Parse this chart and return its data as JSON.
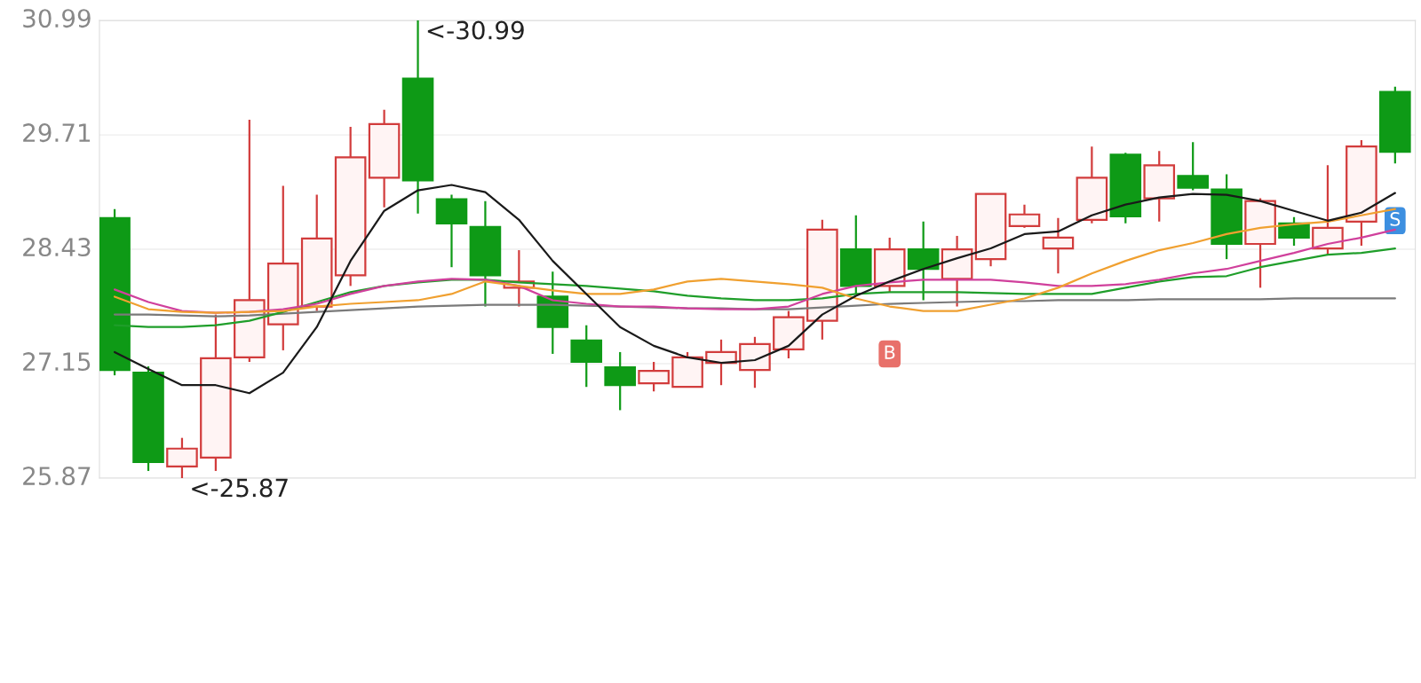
{
  "chart_data": {
    "type": "candlestick",
    "categories": [
      null,
      null,
      null,
      null,
      null,
      null,
      null,
      null,
      null,
      null,
      null,
      null,
      null,
      null,
      null,
      null,
      null,
      null,
      null,
      null,
      null,
      null,
      null,
      null,
      null,
      null,
      null,
      null,
      null,
      null,
      null,
      null,
      null,
      null,
      null,
      null,
      null,
      null,
      null
    ],
    "ohlc": [
      [
        28.78,
        28.88,
        27.02,
        27.08
      ],
      [
        27.05,
        27.12,
        25.95,
        26.05
      ],
      [
        26.0,
        26.32,
        25.87,
        26.2
      ],
      [
        26.1,
        27.7,
        25.95,
        27.21
      ],
      [
        27.22,
        29.88,
        27.17,
        27.86
      ],
      [
        27.59,
        29.14,
        27.3,
        28.27
      ],
      [
        27.79,
        29.04,
        27.74,
        28.55
      ],
      [
        28.14,
        29.8,
        28.02,
        29.46
      ],
      [
        29.23,
        29.99,
        28.9,
        29.83
      ],
      [
        30.34,
        30.99,
        28.83,
        29.2
      ],
      [
        28.99,
        29.04,
        28.23,
        28.72
      ],
      [
        28.68,
        28.97,
        27.79,
        28.14
      ],
      [
        28.0,
        28.42,
        27.79,
        28.07
      ],
      [
        27.9,
        28.18,
        27.26,
        27.56
      ],
      [
        27.41,
        27.58,
        26.89,
        27.17
      ],
      [
        27.11,
        27.28,
        26.63,
        26.91
      ],
      [
        26.93,
        27.17,
        26.84,
        27.07
      ],
      [
        26.89,
        27.28,
        26.89,
        27.22
      ],
      [
        27.16,
        27.42,
        26.91,
        27.28
      ],
      [
        27.08,
        27.45,
        26.88,
        27.37
      ],
      [
        27.31,
        27.74,
        27.21,
        27.67
      ],
      [
        27.63,
        28.76,
        27.42,
        28.65
      ],
      [
        28.43,
        28.81,
        27.93,
        28.02
      ],
      [
        28.02,
        28.56,
        27.95,
        28.43
      ],
      [
        28.43,
        28.74,
        27.86,
        28.21
      ],
      [
        28.1,
        28.58,
        27.79,
        28.43
      ],
      [
        28.32,
        29.05,
        28.24,
        29.05
      ],
      [
        28.69,
        28.93,
        28.67,
        28.82
      ],
      [
        28.44,
        28.78,
        28.16,
        28.56
      ],
      [
        28.76,
        29.58,
        28.72,
        29.23
      ],
      [
        29.49,
        29.51,
        28.72,
        28.8
      ],
      [
        29.0,
        29.53,
        28.74,
        29.37
      ],
      [
        29.25,
        29.63,
        29.09,
        29.12
      ],
      [
        29.1,
        29.27,
        28.32,
        28.49
      ],
      [
        28.49,
        29.0,
        28.0,
        28.97
      ],
      [
        28.72,
        28.79,
        28.47,
        28.56
      ],
      [
        28.44,
        29.37,
        28.37,
        28.67
      ],
      [
        28.74,
        29.65,
        28.47,
        29.58
      ],
      [
        30.19,
        30.25,
        29.39,
        29.52
      ]
    ],
    "colors": [
      "#0e9a16",
      "#0e9a16",
      "#d23c3c",
      "#d23c3c",
      "#d23c3c",
      "#d23c3c",
      "#d23c3c",
      "#d23c3c",
      "#d23c3c",
      "#0e9a16",
      "#0e9a16",
      "#0e9a16",
      "#d23c3c",
      "#0e9a16",
      "#0e9a16",
      "#0e9a16",
      "#d23c3c",
      "#d23c3c",
      "#d23c3c",
      "#d23c3c",
      "#d23c3c",
      "#d23c3c",
      "#0e9a16",
      "#d23c3c",
      "#0e9a16",
      "#d23c3c",
      "#d23c3c",
      "#d23c3c",
      "#d23c3c",
      "#d23c3c",
      "#0e9a16",
      "#d23c3c",
      "#0e9a16",
      "#0e9a16",
      "#d23c3c",
      "#0e9a16",
      "#d23c3c",
      "#d23c3c",
      "#0e9a16"
    ],
    "series": [
      {
        "type": "line",
        "color": "#7a7a7a",
        "values": [
          27.7,
          27.7,
          27.69,
          27.68,
          27.69,
          27.71,
          27.73,
          27.75,
          27.77,
          27.79,
          27.8,
          27.81,
          27.81,
          27.81,
          27.8,
          27.79,
          27.78,
          27.77,
          27.77,
          27.76,
          27.76,
          27.78,
          27.8,
          27.82,
          27.83,
          27.84,
          27.85,
          27.85,
          27.86,
          27.86,
          27.86,
          27.87,
          27.87,
          27.87,
          27.87,
          27.88,
          27.88,
          27.88,
          27.88
        ]
      },
      {
        "type": "line",
        "color": "#1f9e2a",
        "values": [
          27.58,
          27.56,
          27.56,
          27.58,
          27.63,
          27.73,
          27.84,
          27.95,
          28.02,
          28.06,
          28.09,
          28.09,
          28.06,
          28.04,
          28.02,
          27.99,
          27.96,
          27.91,
          27.88,
          27.86,
          27.86,
          27.88,
          27.93,
          27.95,
          27.95,
          27.95,
          27.94,
          27.93,
          27.93,
          27.93,
          28.0,
          28.07,
          28.12,
          28.13,
          28.23,
          28.3,
          28.37,
          28.39,
          28.44
        ]
      },
      {
        "type": "line",
        "color": "#d0409c",
        "values": [
          27.98,
          27.84,
          27.74,
          27.72,
          27.73,
          27.76,
          27.82,
          27.93,
          28.02,
          28.07,
          28.1,
          28.09,
          28.02,
          27.86,
          27.82,
          27.79,
          27.79,
          27.77,
          27.76,
          27.76,
          27.79,
          27.93,
          28.02,
          28.06,
          28.09,
          28.09,
          28.09,
          28.06,
          28.02,
          28.02,
          28.04,
          28.09,
          28.16,
          28.21,
          28.3,
          28.39,
          28.49,
          28.56,
          28.65
        ]
      },
      {
        "type": "line",
        "color": "#f0a030",
        "values": [
          27.9,
          27.76,
          27.73,
          27.72,
          27.73,
          27.74,
          27.79,
          27.82,
          27.84,
          27.86,
          27.93,
          28.07,
          28.02,
          27.97,
          27.93,
          27.93,
          27.98,
          28.07,
          28.1,
          28.07,
          28.04,
          28.0,
          27.88,
          27.79,
          27.74,
          27.74,
          27.81,
          27.88,
          28.0,
          28.16,
          28.3,
          28.42,
          28.5,
          28.6,
          28.67,
          28.71,
          28.74,
          28.81,
          28.88
        ]
      },
      {
        "type": "scatter",
        "values": [
          null,
          null,
          null,
          null,
          null,
          null,
          null,
          null,
          null,
          null,
          null,
          null,
          null,
          null,
          null,
          null,
          null,
          null,
          null,
          null,
          null,
          null,
          null,
          27.26,
          null,
          null,
          null,
          null,
          null,
          null,
          null,
          null,
          null,
          null,
          null,
          null,
          null,
          null,
          28.75
        ],
        "value_labels": [
          null,
          null,
          null,
          null,
          null,
          null,
          null,
          null,
          null,
          null,
          null,
          null,
          null,
          null,
          null,
          null,
          null,
          null,
          null,
          null,
          null,
          null,
          null,
          "B",
          null,
          null,
          null,
          null,
          null,
          null,
          null,
          null,
          null,
          null,
          null,
          null,
          null,
          null,
          "S"
        ],
        "colors": [
          null,
          null,
          null,
          null,
          null,
          null,
          null,
          null,
          null,
          null,
          null,
          null,
          null,
          null,
          null,
          null,
          null,
          null,
          null,
          null,
          null,
          null,
          null,
          "#e8706a",
          null,
          null,
          null,
          null,
          null,
          null,
          null,
          null,
          null,
          null,
          null,
          null,
          null,
          null,
          "#3d8fe0"
        ]
      },
      {
        "type": "line",
        "color": "#1a1a1a",
        "values": [
          27.28,
          27.09,
          26.91,
          26.91,
          26.82,
          27.05,
          27.56,
          28.3,
          28.86,
          29.09,
          29.15,
          29.07,
          28.76,
          28.3,
          27.93,
          27.56,
          27.35,
          27.22,
          27.16,
          27.19,
          27.35,
          27.7,
          27.91,
          28.07,
          28.21,
          28.33,
          28.44,
          28.6,
          28.63,
          28.81,
          28.93,
          29.01,
          29.05,
          29.04,
          28.97,
          28.86,
          28.75,
          28.84,
          29.06
        ]
      }
    ],
    "ylim": [
      25.87,
      30.99
    ],
    "yticks": [
      25.87,
      27.15,
      28.43,
      29.71,
      30.99
    ],
    "tick_labels": "y",
    "grid": "y",
    "annotations": [
      "<-30.99",
      "<-25.87"
    ]
  }
}
